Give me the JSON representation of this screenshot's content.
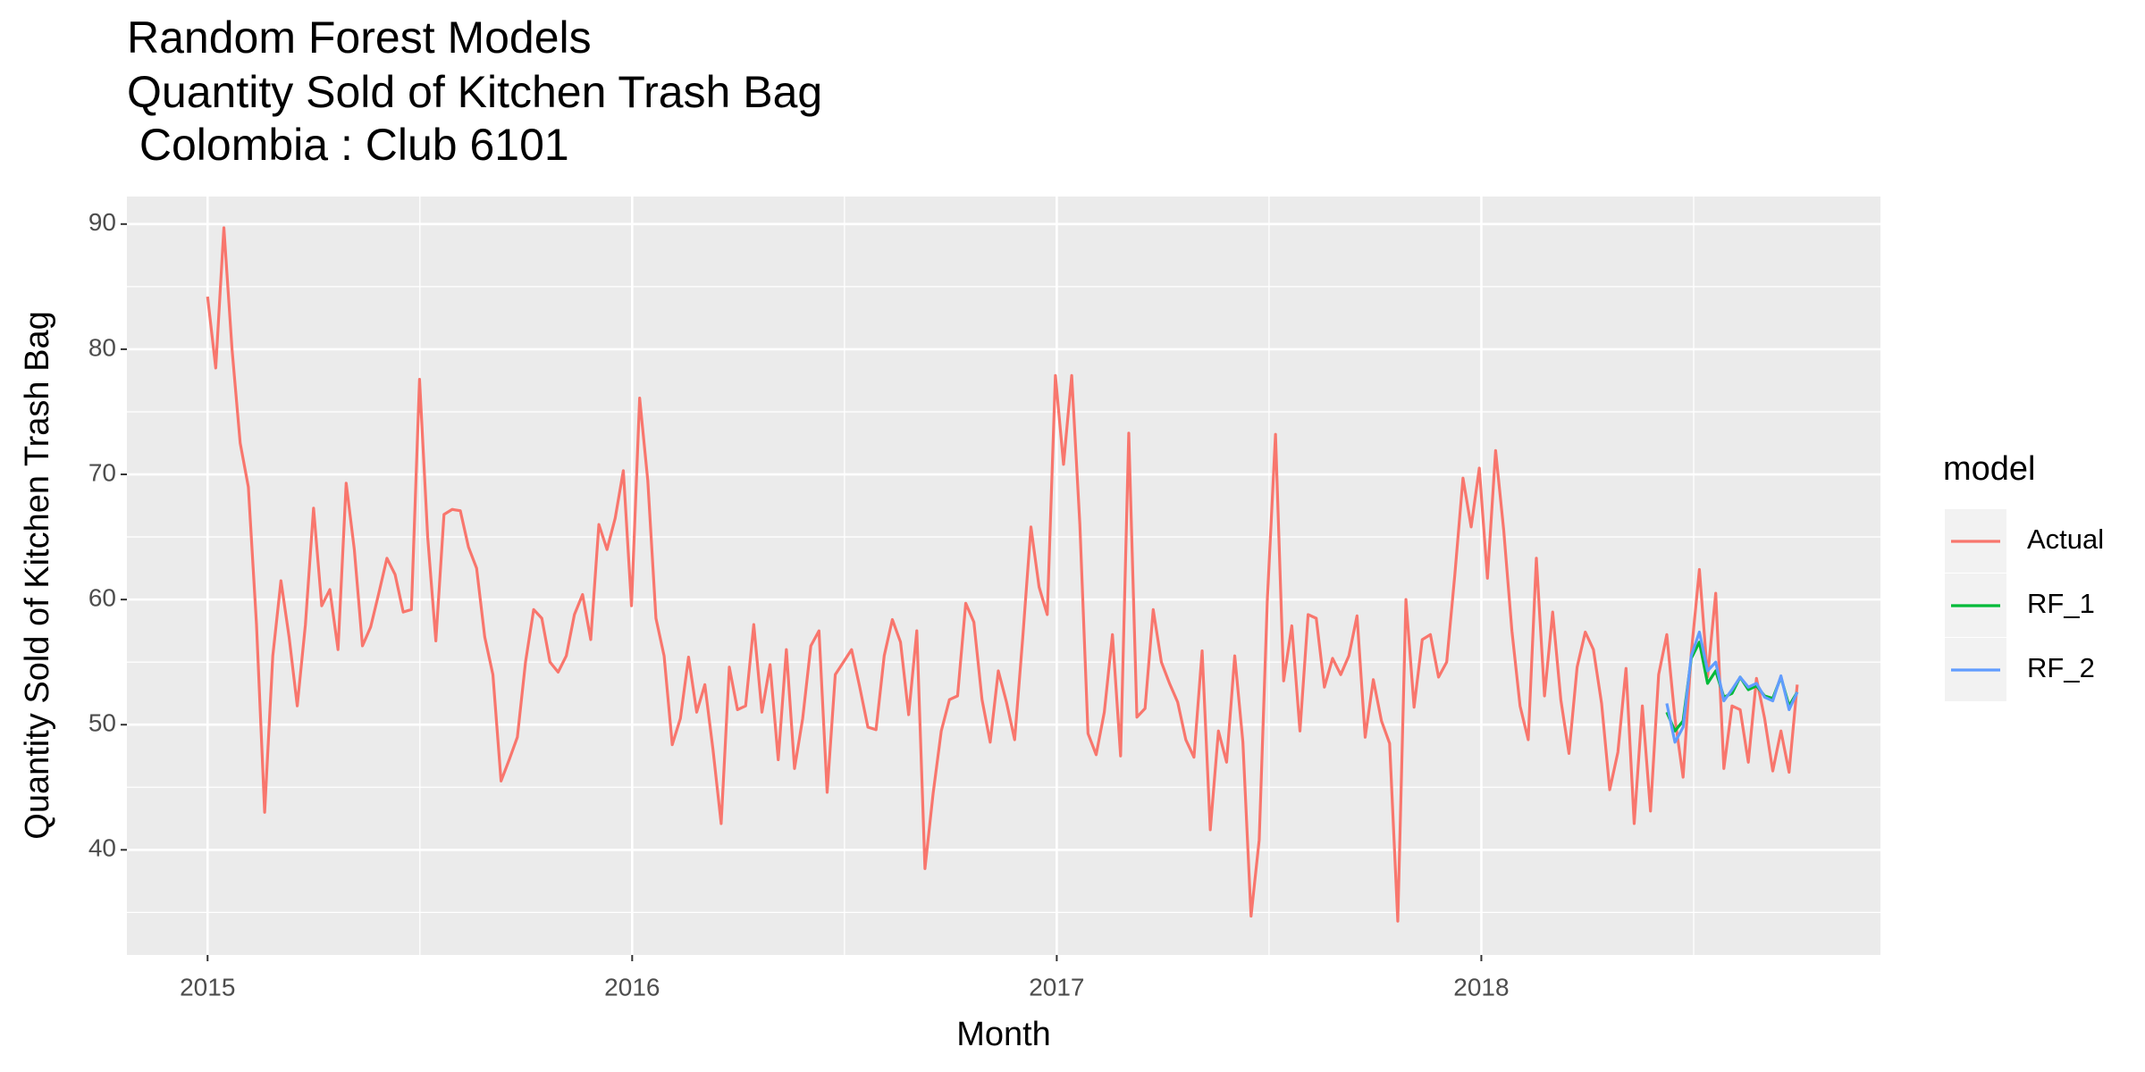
{
  "chart_data": {
    "type": "line",
    "title": [
      "Random Forest Models",
      "Quantity Sold of Kitchen Trash Bag",
      " Colombia : Club 6101"
    ],
    "x_label": "Month",
    "y_label": "Quantity Sold of Kitchen Trash Bag",
    "legend_title": "model",
    "legend": "right",
    "grid": true,
    "xlim": [
      2014.81,
      2018.94
    ],
    "xticks": [
      2015,
      2016,
      2017,
      2018
    ],
    "ylim": [
      31.6,
      92.2
    ],
    "yticks": [
      40,
      50,
      60,
      70,
      80,
      90
    ],
    "series": [
      {
        "name": "Actual",
        "color": "#F8766D",
        "x": [
          2015,
          2015.0192,
          2015.0384,
          2015.0576,
          2015.0768,
          2015.096,
          2015.1152,
          2015.1344,
          2015.1536,
          2015.1728,
          2015.192,
          2015.2112,
          2015.2304,
          2015.2496,
          2015.2688,
          2015.288,
          2015.3072,
          2015.3264,
          2015.3456,
          2015.3648,
          2015.384,
          2015.4032,
          2015.4224,
          2015.4416,
          2015.4608,
          2015.48,
          2015.4992,
          2015.5184,
          2015.5376,
          2015.5568,
          2015.576,
          2015.5952,
          2015.6144,
          2015.6336,
          2015.6528,
          2015.672,
          2015.6912,
          2015.7104,
          2015.7296,
          2015.7488,
          2015.768,
          2015.7872,
          2015.8064,
          2015.8256,
          2015.8448,
          2015.864,
          2015.8832,
          2015.9024,
          2015.9216,
          2015.9408,
          2015.96,
          2015.9792,
          2015.9984,
          2016.0176,
          2016.0368,
          2016.056,
          2016.0752,
          2016.0944,
          2016.1136,
          2016.1328,
          2016.152,
          2016.1712,
          2016.1904,
          2016.2096,
          2016.2288,
          2016.248,
          2016.2672,
          2016.2864,
          2016.3056,
          2016.3248,
          2016.344,
          2016.3632,
          2016.3824,
          2016.4016,
          2016.4208,
          2016.44,
          2016.4592,
          2016.4784,
          2016.4976,
          2016.5168,
          2016.536,
          2016.5552,
          2016.5744,
          2016.5936,
          2016.6128,
          2016.632,
          2016.6512,
          2016.6704,
          2016.6896,
          2016.7088,
          2016.728,
          2016.7472,
          2016.7664,
          2016.7856,
          2016.8048,
          2016.824,
          2016.8432,
          2016.8624,
          2016.8816,
          2016.9008,
          2016.92,
          2016.9392,
          2016.9584,
          2016.9776,
          2016.9968,
          2017.016,
          2017.0352,
          2017.0544,
          2017.0736,
          2017.0928,
          2017.112,
          2017.1312,
          2017.1504,
          2017.1696,
          2017.1888,
          2017.208,
          2017.2272,
          2017.2464,
          2017.2656,
          2017.2848,
          2017.304,
          2017.3232,
          2017.3424,
          2017.3616,
          2017.3808,
          2017.4,
          2017.4192,
          2017.4384,
          2017.4576,
          2017.4768,
          2017.496,
          2017.5152,
          2017.5344,
          2017.5536,
          2017.5728,
          2017.592,
          2017.6112,
          2017.6304,
          2017.6496,
          2017.6688,
          2017.688,
          2017.7072,
          2017.7264,
          2017.7456,
          2017.7648,
          2017.784,
          2017.8032,
          2017.8224,
          2017.8416,
          2017.8608,
          2017.88,
          2017.8992,
          2017.9184,
          2017.9376,
          2017.9568,
          2017.976,
          2017.9952,
          2018.0144,
          2018.0336,
          2018.0528,
          2018.072,
          2018.0912,
          2018.1104,
          2018.1296,
          2018.1488,
          2018.168,
          2018.1872,
          2018.2064,
          2018.2256,
          2018.2448,
          2018.264,
          2018.2832,
          2018.3024,
          2018.3216,
          2018.3408,
          2018.36,
          2018.3792,
          2018.3984,
          2018.4176,
          2018.4368,
          2018.456,
          2018.4752,
          2018.4944,
          2018.5136,
          2018.5328,
          2018.552,
          2018.5712,
          2018.5904,
          2018.6096,
          2018.6288,
          2018.648,
          2018.6672,
          2018.6864,
          2018.7056,
          2018.7248,
          2018.744
        ],
        "values": [
          84.2,
          78.5,
          89.7,
          80,
          72.5,
          69,
          58,
          43,
          55.5,
          61.5,
          57,
          51.5,
          58,
          67.3,
          59.5,
          60.8,
          56,
          69.3,
          64,
          56.3,
          57.8,
          60.5,
          63.3,
          62,
          59,
          59.2,
          77.6,
          65,
          56.7,
          66.8,
          67.2,
          67.1,
          64.2,
          62.5,
          57,
          54,
          45.5,
          47.2,
          49,
          55,
          59.2,
          58.5,
          55,
          54.2,
          55.5,
          58.8,
          60.4,
          56.8,
          66,
          64,
          66.5,
          70.3,
          59.5,
          76.1,
          69.5,
          58.5,
          55.5,
          48.4,
          50.5,
          55.4,
          51,
          53.2,
          48,
          42.1,
          54.6,
          51.2,
          51.5,
          58,
          51,
          54.8,
          47.2,
          56,
          46.5,
          50.5,
          56.3,
          57.5,
          44.6,
          54,
          55,
          56,
          53,
          49.8,
          49.6,
          55.5,
          58.4,
          56.6,
          50.8,
          57.5,
          38.5,
          44.5,
          49.5,
          52,
          52.3,
          59.7,
          58.2,
          52,
          48.6,
          54.3,
          51.8,
          48.8,
          57,
          65.8,
          61,
          58.8,
          77.9,
          70.8,
          77.9,
          66,
          49.3,
          47.6,
          51,
          57.2,
          47.5,
          73.3,
          50.6,
          51.3,
          59.2,
          55,
          53.3,
          51.8,
          48.8,
          47.4,
          55.9,
          41.6,
          49.5,
          47,
          55.5,
          48.6,
          34.7,
          40.8,
          60,
          73.2,
          53.5,
          57.9,
          49.5,
          58.8,
          58.5,
          53,
          55.3,
          54,
          55.5,
          58.7,
          49,
          53.6,
          50.3,
          48.5,
          34.3,
          60,
          51.4,
          56.8,
          57.2,
          53.8,
          55,
          62,
          69.7,
          65.8,
          70.5,
          61.7,
          71.9,
          65.5,
          57.5,
          51.5,
          48.8,
          63.3,
          52.3,
          59,
          52,
          47.7,
          54.6,
          57.4,
          56,
          51.7,
          44.8,
          47.8,
          54.5,
          42.1,
          51.5,
          43.1,
          54,
          57.2,
          50.5,
          45.8,
          55.7,
          62.4,
          53.8,
          60.5,
          46.5,
          51.5,
          51.2,
          47,
          53.7,
          50.5,
          46.3,
          49.5,
          46.2,
          53.2
        ]
      },
      {
        "name": "RF_1",
        "color": "#00BA38",
        "x": [
          2018.4368,
          2018.456,
          2018.4752,
          2018.4944,
          2018.5136,
          2018.5328,
          2018.552,
          2018.5712,
          2018.5904,
          2018.6096,
          2018.6288,
          2018.648,
          2018.6672,
          2018.6864,
          2018.7056,
          2018.7248,
          2018.744
        ],
        "values": [
          51,
          49.5,
          50.3,
          55.3,
          56.6,
          53.3,
          54.3,
          52.2,
          52.5,
          53.8,
          52.8,
          53.1,
          52.3,
          52.1,
          53.8,
          51.5,
          52.6
        ]
      },
      {
        "name": "RF_2",
        "color": "#619CFF",
        "x": [
          2018.4368,
          2018.456,
          2018.4752,
          2018.4944,
          2018.5136,
          2018.5328,
          2018.552,
          2018.5712,
          2018.5904,
          2018.6096,
          2018.6288,
          2018.648,
          2018.6672,
          2018.6864,
          2018.7056,
          2018.7248,
          2018.744
        ],
        "values": [
          51.7,
          48.6,
          49.8,
          55.5,
          57.4,
          54.3,
          55,
          51.9,
          52.8,
          53.8,
          53,
          53.3,
          52.2,
          51.9,
          53.9,
          51.2,
          52.6
        ]
      }
    ]
  }
}
